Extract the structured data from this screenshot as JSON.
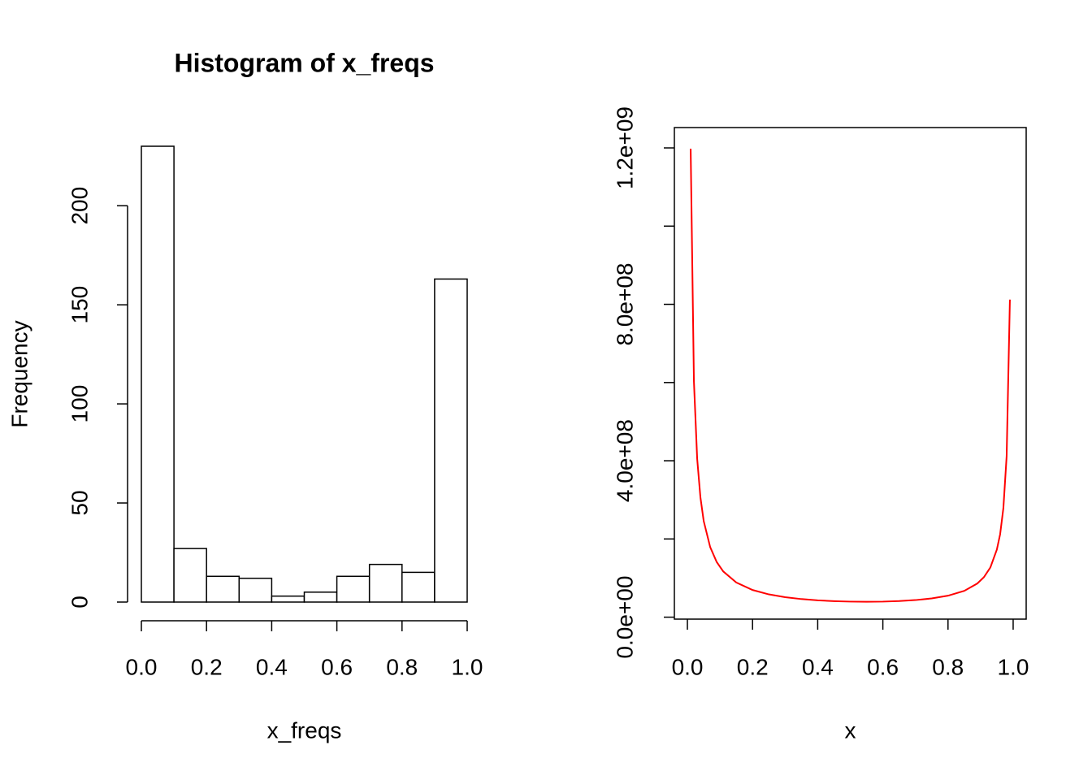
{
  "chart_data": [
    {
      "type": "histogram",
      "title": "Histogram of x_freqs",
      "x_label": "x_freqs",
      "y_label": "Frequency",
      "bins": [
        0,
        0.1,
        0.2,
        0.3,
        0.4,
        0.5,
        0.6,
        0.7,
        0.8,
        0.9,
        1
      ],
      "counts": [
        230,
        27,
        13,
        12,
        3,
        5,
        13,
        19,
        15,
        163
      ],
      "color": "#ffffff",
      "edge_color": "#000000",
      "xlim": [
        0,
        1
      ],
      "xticks": [
        {
          "value": 0,
          "label": "0.0"
        },
        0.2,
        0.4,
        0.6,
        0.8,
        {
          "value": 1,
          "label": "1.0"
        }
      ],
      "ylim": [
        0,
        230
      ],
      "yticks": [
        0,
        50,
        100,
        150,
        200
      ],
      "grid": false
    },
    {
      "type": "line",
      "x_label": "x",
      "x": [
        0.01,
        0.02,
        0.03,
        0.04,
        0.05,
        0.07,
        0.09,
        0.11,
        0.15,
        0.2,
        0.25,
        0.3,
        0.35,
        0.4,
        0.45,
        0.5,
        0.55,
        0.6,
        0.65,
        0.7,
        0.75,
        0.8,
        0.85,
        0.89,
        0.91,
        0.93,
        0.95,
        0.96,
        0.97,
        0.98,
        0.99
      ],
      "values": [
        1198000000,
        603000000,
        405000000,
        306000000,
        246000000,
        179000000,
        141000000,
        117000000,
        88700000,
        69500000,
        58300000,
        51100000,
        46300000,
        43100000,
        41000000,
        39800000,
        39400000,
        39800000,
        41200000,
        43700000,
        47900000,
        54900000,
        67300000,
        86100000,
        102000000,
        127000000,
        173000000,
        212000000,
        279000000,
        412000000,
        812000000
      ],
      "color": "#ff0000",
      "xlim": [
        -0.04,
        1.04
      ],
      "xticks": [
        {
          "value": 0,
          "label": "0.0"
        },
        0.2,
        0.4,
        0.6,
        0.8,
        {
          "value": 1,
          "label": "1.0"
        }
      ],
      "ylim": [
        -5000000,
        1252000000
      ],
      "yticks": [
        {
          "value": 0,
          "label": "0.0e+00"
        },
        {
          "value": 400000000,
          "label": "4.0e+08"
        },
        {
          "value": 800000000,
          "label": "8.0e+08"
        },
        {
          "value": 1200000000,
          "label": "1.2e+09"
        }
      ],
      "yticks_minor": [
        200000000,
        600000000,
        1000000000
      ],
      "grid": false
    }
  ]
}
